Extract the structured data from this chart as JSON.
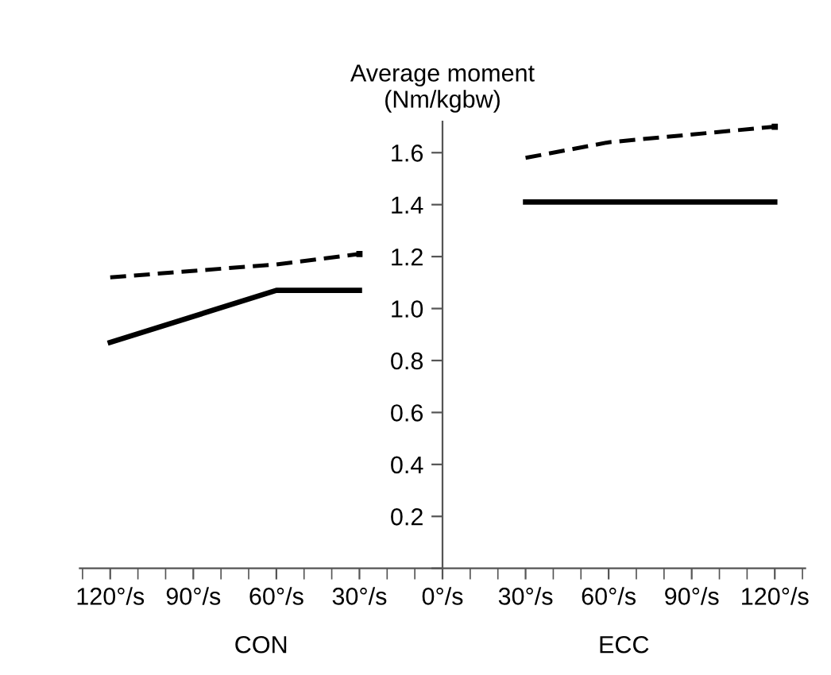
{
  "chart_data": {
    "type": "line",
    "ylabel": "Average moment\n(Nm/kgbw)",
    "annotations": [
      "CON",
      "ECC"
    ],
    "xlim": [
      -131,
      131
    ],
    "xticks": [
      {
        "value": -120,
        "label": "120°/s"
      },
      {
        "value": -90,
        "label": "90°/s"
      },
      {
        "value": -60,
        "label": "60°/s"
      },
      {
        "value": -30,
        "label": "30°/s"
      },
      {
        "value": 0,
        "label": "0°/s"
      },
      {
        "value": 30,
        "label": "30°/s"
      },
      {
        "value": 60,
        "label": "60°/s"
      },
      {
        "value": 90,
        "label": "90°/s"
      },
      {
        "value": 120,
        "label": "120°/s"
      }
    ],
    "ylim": [
      0,
      1.72
    ],
    "yticks": [
      {
        "value": 0,
        "label": null
      },
      0.2,
      0.4,
      0.6,
      0.8,
      {
        "value": 1.0,
        "label": "1.0"
      },
      1.2,
      1.4,
      1.6
    ],
    "grid": false,
    "legend": false,
    "marker": "none",
    "series": [
      {
        "x": [
          -120,
          -60,
          -30
        ],
        "values": [
          0.87,
          1.07,
          1.07
        ],
        "color": "#000000",
        "line_style": "solid"
      },
      {
        "x": [
          -120,
          -60,
          -30
        ],
        "values": [
          1.12,
          1.17,
          1.21
        ],
        "color": "#000000",
        "line_style": "dashed"
      },
      {
        "x": [
          30,
          60,
          120
        ],
        "values": [
          1.41,
          1.41,
          1.41
        ],
        "color": "#000000",
        "line_style": "solid"
      },
      {
        "x": [
          30,
          60,
          120
        ],
        "values": [
          1.58,
          1.64,
          1.7
        ],
        "color": "#000000",
        "line_style": "dashed"
      }
    ]
  }
}
